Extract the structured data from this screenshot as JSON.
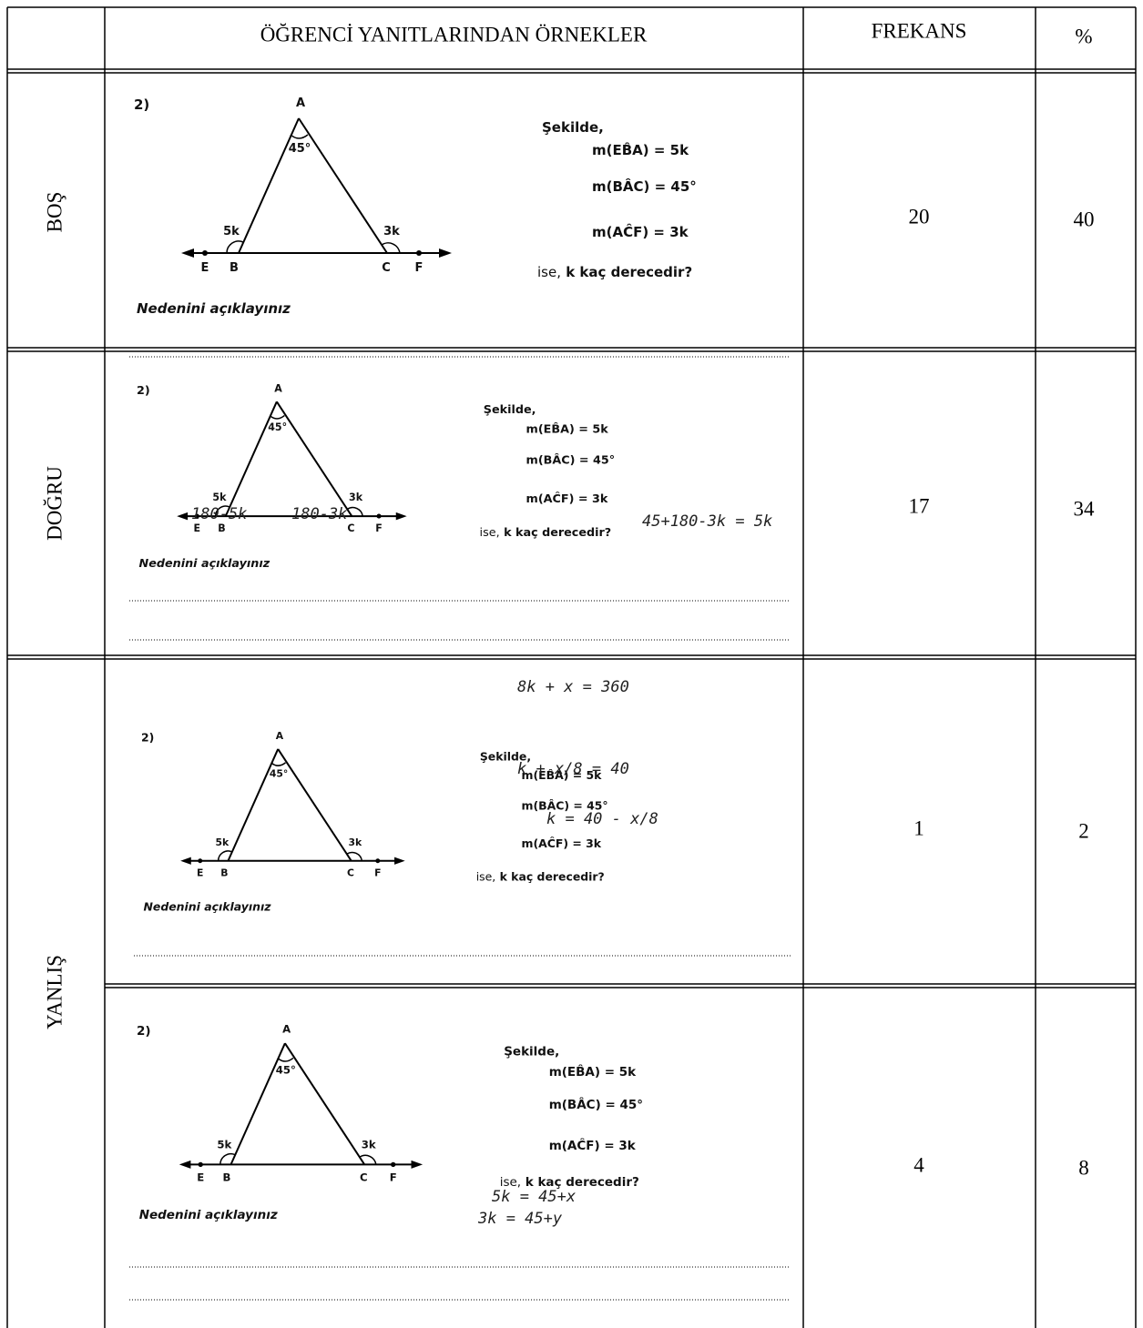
{
  "table": {
    "headers": [
      "ÖĞRENCİ YANITLARINDAN ÖRNEKLER",
      "FREKANS",
      "%"
    ],
    "groups": [
      {
        "label": "BOŞ",
        "samples": [
          {
            "frequency": 20,
            "percent": 40,
            "question": {
              "number": "2)",
              "points": [
                "A",
                "E",
                "B",
                "C",
                "F"
              ],
              "angles": [
                "45°",
                "5k",
                "3k"
              ],
              "intro": "Şekilde,",
              "conditions": [
                "m(EB̂A) = 5k",
                "m(BÂC) = 45°",
                "m(AĈF) = 3k"
              ],
              "lead": "ise,",
              "ask": "k kaç derecedir?",
              "prompt": "Nedenini açıklayınız"
            }
          }
        ]
      },
      {
        "label": "DOĞRU",
        "samples": [
          {
            "frequency": 17,
            "percent": 34,
            "question": {
              "number": "2)",
              "points": [
                "A",
                "E",
                "B",
                "C",
                "F"
              ],
              "angles": [
                "45°",
                "5k",
                "3k"
              ],
              "intro": "Şekilde,",
              "conditions": [
                "m(EB̂A) = 5k",
                "m(BÂC) = 45°",
                "m(AĈF) = 3k"
              ],
              "lead": "ise,",
              "ask": "k kaç derecedir?",
              "prompt": "Nedenini açıklayınız"
            },
            "handwriting": [
              "180-5k",
              "180-3k",
              "45+180-3k = 5k"
            ]
          }
        ]
      },
      {
        "label": "YANLIŞ",
        "samples": [
          {
            "frequency": 1,
            "percent": 2,
            "question": {
              "number": "2)",
              "points": [
                "A",
                "E",
                "B",
                "C",
                "F"
              ],
              "angles": [
                "45°",
                "5k",
                "3k"
              ],
              "intro": "Şekilde,",
              "conditions": [
                "m(EB̂A) = 5k",
                "m(BÂC) = 45°",
                "m(AĈF) = 3k"
              ],
              "lead": "ise,",
              "ask": "k kaç derecedir?",
              "prompt": "Nedenini açıklayınız"
            },
            "handwriting": [
              "8k + x = 360",
              "k + x/8 = 40",
              "k = 40 - x/8"
            ]
          },
          {
            "frequency": 4,
            "percent": 8,
            "question": {
              "number": "2)",
              "points": [
                "A",
                "E",
                "B",
                "C",
                "F"
              ],
              "angles": [
                "45°",
                "5k",
                "3k"
              ],
              "intro": "Şekilde,",
              "conditions": [
                "m(EB̂A) = 5k",
                "m(BÂC) = 45°",
                "m(AĈF) = 3k"
              ],
              "lead": "ise,",
              "ask": "k kaç derecedir?",
              "prompt": "Nedenini açıklayınız"
            },
            "handwriting": [
              "5k = 45+x",
              "3k = 45+y"
            ]
          }
        ]
      }
    ]
  }
}
